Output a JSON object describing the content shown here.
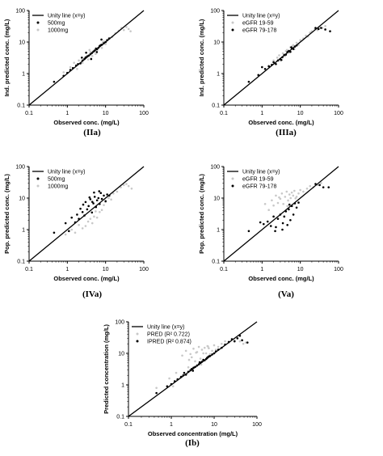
{
  "captions": {
    "IIa": "(IIa)",
    "IIIa": "(IIIa)",
    "IVa": "(IVa)",
    "Va": "(Va)",
    "Ib": "(Ib)"
  },
  "chart_data": [
    {
      "id": "IIa",
      "type": "scatter",
      "xscale": "log",
      "yscale": "log",
      "xlim": [
        0.1,
        100
      ],
      "ylim": [
        0.1,
        100
      ],
      "xticks": [
        "0.1",
        "1",
        "10",
        "100"
      ],
      "yticks": [
        "0.1",
        "1",
        "10",
        "100"
      ],
      "xlabel": "Observed conc. (mg/L)",
      "ylabel": "Ind. predicted conc. (mg/L)",
      "grid": false,
      "legend_position": "top-left",
      "unity_line_label": "Unity line (x=y)",
      "series": [
        {
          "name": "500mg",
          "color": "#000000",
          "x": [
            0.45,
            0.8,
            1.0,
            1.2,
            1.4,
            1.7,
            1.9,
            2.2,
            2.5,
            2.8,
            3.0,
            3.3,
            3.6,
            4.0,
            4.4,
            4.8,
            5.2,
            5.6,
            6.0,
            6.5,
            7.0,
            7.5,
            8.0,
            9.0,
            10.0,
            11.0,
            12.5,
            4.2,
            3.1,
            5.9,
            7.8,
            2.4
          ],
          "y": [
            0.55,
            0.85,
            1.05,
            1.3,
            1.5,
            1.8,
            2.0,
            2.1,
            2.6,
            2.9,
            3.2,
            3.5,
            3.7,
            4.1,
            4.5,
            5.0,
            5.4,
            6.2,
            6.0,
            6.6,
            7.4,
            8.0,
            8.2,
            9.2,
            10.0,
            11.5,
            13.0,
            2.9,
            4.6,
            4.8,
            12.0,
            3.2
          ]
        },
        {
          "name": "1000mg",
          "color": "#c8c8c8",
          "x": [
            0.8,
            1.2,
            1.5,
            1.8,
            2.0,
            2.5,
            3.0,
            3.5,
            4.0,
            4.5,
            5.0,
            6.0,
            7.0,
            8.0,
            9.0,
            10.0,
            12.0,
            15.0,
            18.0,
            22.0,
            26.0,
            30.0,
            35.0,
            40.0,
            45.0,
            3.8,
            5.5,
            8.5
          ],
          "y": [
            1.1,
            1.6,
            2.2,
            1.4,
            2.6,
            2.2,
            3.4,
            2.8,
            4.8,
            3.6,
            5.2,
            5.5,
            7.8,
            6.5,
            10.5,
            8.6,
            13.0,
            14.5,
            19.0,
            23.0,
            28.0,
            24.0,
            30.0,
            26.0,
            22.0,
            5.6,
            4.2,
            9.8
          ]
        }
      ]
    },
    {
      "id": "IIIa",
      "type": "scatter",
      "xscale": "log",
      "yscale": "log",
      "xlim": [
        0.1,
        100
      ],
      "ylim": [
        0.1,
        100
      ],
      "xticks": [
        "0.1",
        "1",
        "10",
        "100"
      ],
      "yticks": [
        "0.1",
        "1",
        "10",
        "100"
      ],
      "xlabel": "Observed conc. (mg/L)",
      "ylabel": "Ind. predicted conc. (mg/L)",
      "grid": false,
      "legend_position": "top-left",
      "unity_line_label": "Unity line (x=y)",
      "series": [
        {
          "name": "eGFR 19-59",
          "color": "#c8c8c8",
          "x": [
            1.5,
            2.0,
            2.5,
            3.0,
            3.5,
            4.0,
            4.5,
            5.0,
            5.5,
            6.0,
            7.0,
            8.0,
            9.0,
            10.0,
            12.0,
            14.0,
            16.0,
            18.0,
            20.0,
            24.0,
            28.0,
            32.0,
            38.0,
            45.0,
            2.8,
            4.2,
            6.5
          ],
          "y": [
            1.8,
            2.6,
            3.2,
            2.6,
            4.4,
            3.6,
            5.6,
            4.6,
            6.8,
            7.2,
            6.0,
            9.5,
            8.2,
            11.5,
            13.0,
            16.0,
            15.0,
            20.0,
            22.0,
            26.0,
            24.0,
            30.0,
            28.0,
            32.0,
            3.8,
            5.2,
            8.0
          ]
        },
        {
          "name": "eGFR 79-178",
          "color": "#000000",
          "x": [
            0.45,
            0.8,
            1.0,
            1.2,
            1.5,
            1.8,
            2.0,
            2.3,
            2.6,
            3.0,
            3.4,
            3.8,
            4.2,
            4.6,
            5.0,
            5.5,
            6.0,
            6.6,
            7.2,
            8.0,
            25.0,
            30.0,
            35.0,
            45.0,
            60.0,
            3.2,
            5.8
          ],
          "y": [
            0.55,
            0.9,
            1.6,
            1.4,
            1.7,
            1.9,
            2.3,
            2.0,
            2.6,
            2.9,
            3.3,
            3.9,
            4.0,
            4.8,
            5.2,
            4.9,
            6.4,
            6.0,
            7.2,
            7.8,
            28.0,
            26.0,
            28.0,
            25.0,
            22.0,
            2.7,
            6.8
          ]
        }
      ]
    },
    {
      "id": "IVa",
      "type": "scatter",
      "xscale": "log",
      "yscale": "log",
      "xlim": [
        0.1,
        100
      ],
      "ylim": [
        0.1,
        100
      ],
      "xticks": [
        "0.1",
        "1",
        "10",
        "100"
      ],
      "yticks": [
        "0.1",
        "1",
        "10",
        "100"
      ],
      "xlabel": "Observed conc. (mg/L)",
      "ylabel": "Pop. predicted conc. (mg/L)",
      "grid": false,
      "legend_position": "top-left",
      "unity_line_label": "Unity line (x=y)",
      "series": [
        {
          "name": "500mg",
          "color": "#000000",
          "x": [
            0.45,
            0.9,
            1.1,
            1.3,
            1.6,
            1.8,
            2.0,
            2.2,
            2.5,
            2.8,
            3.0,
            3.3,
            3.6,
            4.0,
            4.4,
            4.8,
            5.2,
            5.6,
            6.0,
            6.5,
            7.0,
            7.5,
            8.0,
            9.0,
            10.0,
            11.0,
            12.5,
            3.8,
            5.0,
            2.6,
            4.5,
            6.8
          ],
          "y": [
            0.8,
            1.6,
            0.9,
            2.4,
            1.7,
            3.0,
            2.2,
            4.6,
            3.6,
            2.8,
            7.5,
            4.4,
            5.6,
            9.2,
            3.5,
            6.8,
            11.0,
            5.2,
            8.5,
            10.0,
            6.5,
            14.5,
            9.4,
            12.0,
            8.0,
            13.0,
            12.0,
            10.5,
            15.0,
            6.2,
            7.6,
            16.5
          ]
        },
        {
          "name": "1000mg",
          "color": "#c8c8c8",
          "x": [
            0.9,
            1.3,
            1.6,
            2.0,
            2.5,
            3.0,
            3.5,
            4.0,
            4.5,
            5.0,
            5.5,
            6.0,
            7.0,
            8.0,
            9.0,
            10.0,
            12.0,
            14.0,
            16.0,
            20.0,
            25.0,
            30.0,
            35.0,
            40.0,
            48.0
          ],
          "y": [
            0.7,
            1.0,
            0.8,
            1.4,
            1.1,
            1.3,
            1.8,
            2.2,
            1.6,
            2.6,
            3.8,
            2.4,
            3.6,
            4.2,
            6.0,
            7.5,
            10.0,
            9.0,
            14.0,
            16.0,
            22.0,
            26.0,
            28.0,
            24.0,
            20.0
          ]
        }
      ]
    },
    {
      "id": "Va",
      "type": "scatter",
      "xscale": "log",
      "yscale": "log",
      "xlim": [
        0.1,
        100
      ],
      "ylim": [
        0.1,
        100
      ],
      "xticks": [
        "0.1",
        "1",
        "10",
        "100"
      ],
      "yticks": [
        "0.1",
        "1",
        "10",
        "100"
      ],
      "xlabel": "Observed conc. (mg/L)",
      "ylabel": "Pop. predicted conc. (mg/L)",
      "grid": false,
      "legend_position": "top-left",
      "unity_line_label": "Unity line (x=y)",
      "series": [
        {
          "name": "eGFR 19-59",
          "color": "#c8c8c8",
          "x": [
            1.2,
            1.5,
            1.8,
            2.0,
            2.3,
            2.6,
            3.0,
            3.3,
            3.6,
            4.0,
            4.4,
            4.8,
            5.2,
            5.6,
            6.0,
            6.5,
            7.0,
            8.0,
            9.0,
            10.0,
            12.0,
            15.0,
            18.0,
            22.0,
            28.0,
            35.0,
            2.8,
            4.6,
            7.5
          ],
          "y": [
            6.5,
            4.2,
            8.5,
            5.8,
            12.0,
            7.0,
            9.5,
            14.0,
            6.5,
            11.0,
            16.0,
            8.4,
            13.0,
            10.0,
            15.0,
            12.0,
            17.0,
            11.0,
            14.0,
            18.0,
            16.0,
            20.0,
            24.0,
            22.0,
            26.0,
            30.0,
            10.5,
            5.6,
            9.8
          ]
        },
        {
          "name": "eGFR 79-178",
          "color": "#000000",
          "x": [
            0.45,
            0.9,
            1.1,
            1.4,
            1.7,
            2.0,
            2.3,
            2.6,
            3.0,
            3.4,
            3.8,
            4.2,
            4.6,
            5.0,
            5.5,
            6.0,
            6.6,
            7.2,
            8.0,
            9.0,
            25.0,
            32.0,
            40.0,
            55.0,
            2.2,
            3.5,
            5.2
          ],
          "y": [
            0.9,
            1.7,
            1.5,
            1.8,
            1.3,
            2.6,
            1.2,
            2.2,
            3.0,
            1.0,
            2.6,
            3.8,
            1.4,
            4.4,
            2.0,
            5.6,
            3.0,
            6.8,
            5.0,
            7.2,
            28.0,
            26.0,
            22.0,
            22.0,
            0.9,
            1.6,
            6.2
          ]
        }
      ]
    },
    {
      "id": "Ib",
      "type": "scatter",
      "xscale": "log",
      "yscale": "log",
      "xlim": [
        0.1,
        100
      ],
      "ylim": [
        0.1,
        100
      ],
      "xticks": [
        "0.1",
        "1",
        "10",
        "100"
      ],
      "yticks": [
        "0.1",
        "1",
        "10",
        "100"
      ],
      "xlabel": "Observed concentration (mg/L)",
      "ylabel": "Predicted concentration (mg/L)",
      "grid": false,
      "legend_position": "top-left",
      "unity_line_label": "Unity line (x=y)",
      "series": [
        {
          "name": "PRED (R² 0.722)",
          "color": "#c8c8c8",
          "x": [
            0.45,
            0.9,
            1.1,
            1.3,
            1.6,
            1.8,
            2.0,
            2.2,
            2.5,
            2.8,
            3.0,
            3.3,
            3.6,
            4.0,
            4.4,
            4.8,
            5.2,
            5.6,
            6.0,
            6.5,
            7.0,
            7.5,
            8.0,
            9.0,
            10.0,
            11.0,
            12.5,
            15.0,
            18.0,
            22.0,
            26.0,
            30.0,
            35.0,
            40.0,
            48.0,
            55.0,
            2.6,
            3.8,
            5.0,
            7.2
          ],
          "y": [
            0.8,
            1.6,
            0.9,
            2.4,
            1.7,
            8.5,
            2.2,
            12.0,
            3.6,
            9.5,
            7.5,
            14.0,
            5.6,
            11.0,
            16.0,
            6.8,
            13.0,
            10.0,
            15.0,
            10.0,
            17.0,
            14.5,
            9.4,
            12.0,
            18.0,
            13.0,
            16.0,
            20.0,
            24.0,
            22.0,
            28.0,
            26.0,
            30.0,
            24.0,
            20.0,
            22.0,
            6.2,
            10.5,
            4.4,
            16.5
          ]
        },
        {
          "name": "IPRED (R² 0.874)",
          "color": "#000000",
          "x": [
            0.45,
            0.8,
            1.0,
            1.2,
            1.4,
            1.7,
            1.9,
            2.2,
            2.5,
            2.8,
            3.0,
            3.3,
            3.6,
            4.0,
            4.4,
            4.8,
            5.2,
            5.6,
            6.0,
            6.5,
            7.0,
            7.5,
            8.0,
            9.0,
            10.0,
            11.0,
            12.5,
            15.0,
            18.0,
            22.0,
            26.0,
            30.0,
            35.0,
            40.0,
            45.0,
            60.0,
            2.0,
            3.2,
            4.6,
            6.8
          ],
          "y": [
            0.55,
            0.9,
            1.05,
            1.3,
            1.5,
            1.8,
            2.0,
            2.1,
            2.6,
            2.9,
            3.2,
            3.5,
            3.7,
            4.1,
            4.5,
            5.0,
            5.4,
            6.2,
            6.0,
            6.6,
            7.4,
            8.0,
            8.2,
            9.2,
            10.0,
            11.5,
            13.0,
            15.0,
            19.0,
            23.0,
            28.0,
            24.0,
            30.0,
            36.0,
            26.0,
            22.0,
            2.4,
            2.8,
            5.2,
            7.0
          ]
        }
      ]
    }
  ]
}
